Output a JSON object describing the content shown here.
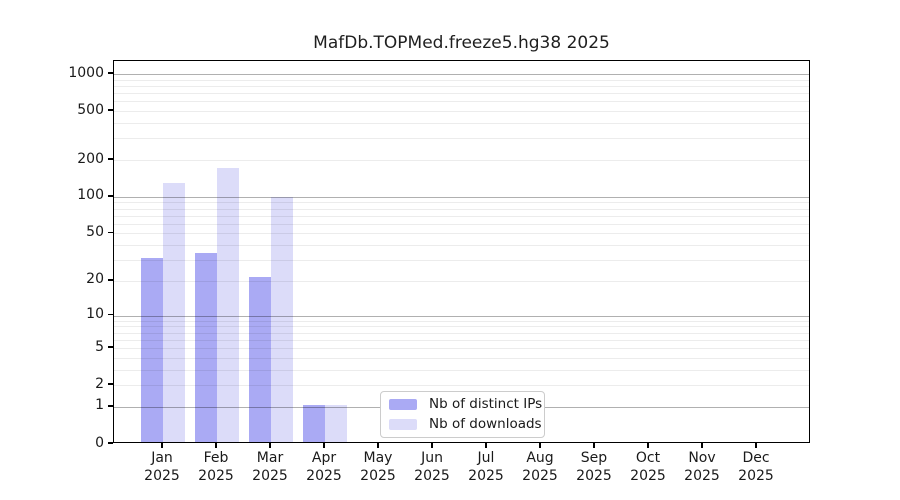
{
  "chart_data": {
    "type": "bar",
    "title": "MafDb.TOPMed.freeze5.hg38 2025",
    "categories": [
      "Jan",
      "Feb",
      "Mar",
      "Apr",
      "May",
      "Jun",
      "Jul",
      "Aug",
      "Sep",
      "Oct",
      "Nov",
      "Dec"
    ],
    "category_year": "2025",
    "series": [
      {
        "name": "Nb of distinct IPs",
        "color": "#aaaaf4",
        "values": [
          30,
          33,
          21,
          1,
          0,
          0,
          0,
          0,
          0,
          0,
          0,
          0
        ]
      },
      {
        "name": "Nb of downloads",
        "color": "#dcdcf9",
        "values": [
          125,
          167,
          96,
          1,
          0,
          0,
          0,
          0,
          0,
          0,
          0,
          0
        ]
      }
    ],
    "y_scale": "log10(1+x)",
    "ylim": [
      0,
      1280
    ],
    "y_ticks": [
      0,
      1,
      2,
      5,
      10,
      20,
      50,
      100,
      200,
      500,
      1000
    ],
    "grid": {
      "major_lines": [
        1,
        10,
        100,
        1000
      ],
      "minor_lines": [
        2,
        3,
        4,
        5,
        6,
        7,
        8,
        9,
        20,
        30,
        40,
        50,
        60,
        70,
        80,
        90,
        200,
        300,
        400,
        500,
        600,
        700,
        800,
        900
      ],
      "major_color": "#b0b0b0",
      "minor_color": "#ececec"
    },
    "legend_position": "bottom-center",
    "frame_color": "#000000",
    "text_color": "#1a1a1a",
    "background": "#ffffff"
  }
}
